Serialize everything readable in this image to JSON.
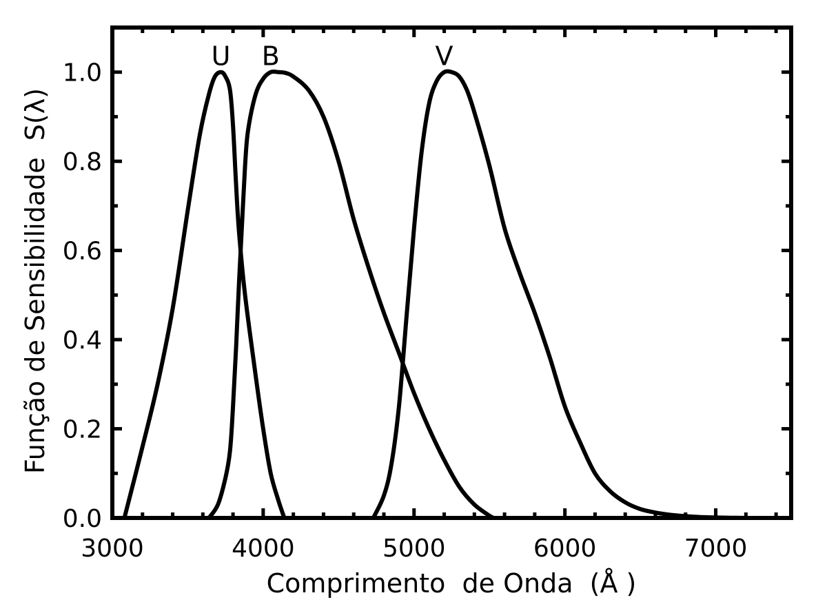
{
  "chart_data": {
    "type": "line",
    "title": "",
    "xlabel": "Comprimento  de Onda  (Å )",
    "ylabel": "Função de Sensibilidade  S(λ)",
    "xlim": [
      3000,
      7500
    ],
    "ylim": [
      0,
      1.1
    ],
    "x_ticks": [
      3000,
      4000,
      5000,
      6000,
      7000
    ],
    "x_tick_labels": [
      "3000",
      "4000",
      "5000",
      "6000",
      "7000"
    ],
    "y_ticks": [
      0.0,
      0.2,
      0.4,
      0.6,
      0.8,
      1.0
    ],
    "y_tick_labels": [
      "0.0",
      "0.2",
      "0.4",
      "0.6",
      "0.8",
      "1.0"
    ],
    "grid": false,
    "line_color": "#000000",
    "series": [
      {
        "name": "U",
        "x": [
          3080,
          3200,
          3300,
          3400,
          3500,
          3580,
          3640,
          3680,
          3720,
          3750,
          3780,
          3800,
          3820,
          3840,
          3880,
          3950,
          4000,
          4050,
          4100,
          4140
        ],
        "y": [
          0.0,
          0.16,
          0.3,
          0.47,
          0.69,
          0.86,
          0.95,
          0.99,
          1.0,
          0.99,
          0.96,
          0.88,
          0.75,
          0.64,
          0.5,
          0.32,
          0.2,
          0.1,
          0.04,
          0.0
        ]
      },
      {
        "name": "B",
        "x": [
          3640,
          3700,
          3750,
          3780,
          3800,
          3820,
          3840,
          3860,
          3880,
          3900,
          3950,
          4000,
          4050,
          4100,
          4150,
          4200,
          4300,
          4400,
          4500,
          4600,
          4700,
          4800,
          4900,
          5000,
          5100,
          5200,
          5300,
          5400,
          5500,
          5530
        ],
        "y": [
          0.0,
          0.03,
          0.09,
          0.15,
          0.25,
          0.38,
          0.53,
          0.66,
          0.79,
          0.87,
          0.95,
          0.985,
          1.0,
          1.0,
          0.998,
          0.99,
          0.96,
          0.9,
          0.8,
          0.67,
          0.56,
          0.46,
          0.37,
          0.28,
          0.2,
          0.13,
          0.07,
          0.03,
          0.005,
          0.0
        ]
      },
      {
        "name": "V",
        "x": [
          4730,
          4800,
          4850,
          4900,
          4950,
          5000,
          5050,
          5100,
          5150,
          5200,
          5250,
          5300,
          5350,
          5400,
          5500,
          5600,
          5700,
          5800,
          5900,
          6000,
          6100,
          6200,
          6300,
          6400,
          6500,
          6600,
          6700,
          6800,
          6900,
          7000,
          7100,
          7200
        ],
        "y": [
          0.0,
          0.05,
          0.12,
          0.25,
          0.45,
          0.65,
          0.82,
          0.93,
          0.98,
          1.0,
          1.0,
          0.99,
          0.96,
          0.91,
          0.79,
          0.65,
          0.55,
          0.46,
          0.36,
          0.25,
          0.17,
          0.1,
          0.06,
          0.035,
          0.02,
          0.012,
          0.007,
          0.004,
          0.002,
          0.001,
          0.0005,
          0.0
        ]
      }
    ]
  }
}
